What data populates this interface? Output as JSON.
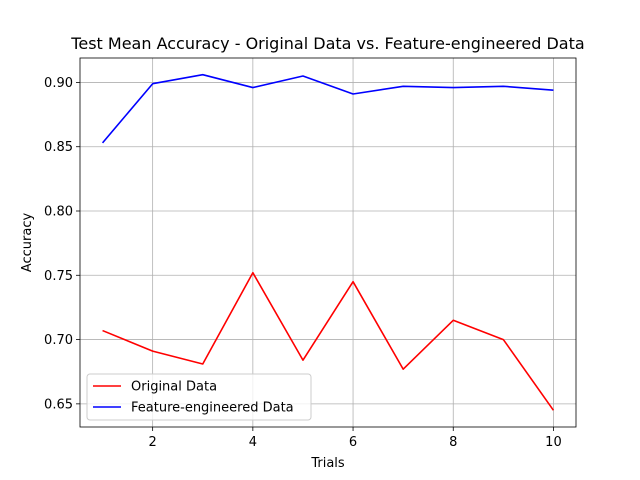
{
  "chart_data": {
    "type": "line",
    "title": "Test Mean Accuracy - Original Data vs. Feature-engineered Data",
    "xlabel": "Trials",
    "ylabel": "Accuracy",
    "x": [
      1,
      2,
      3,
      4,
      5,
      6,
      7,
      8,
      9,
      10
    ],
    "xlim": [
      0.55,
      10.45
    ],
    "ylim": [
      0.632,
      0.919
    ],
    "x_ticks": [
      2,
      4,
      6,
      8,
      10
    ],
    "x_tick_labels": [
      "2",
      "4",
      "6",
      "8",
      "10"
    ],
    "y_ticks": [
      0.65,
      0.7,
      0.75,
      0.8,
      0.85,
      0.9
    ],
    "y_tick_labels": [
      "0.65",
      "0.70",
      "0.75",
      "0.80",
      "0.85",
      "0.90"
    ],
    "grid": true,
    "legend_position": "lower-left",
    "series": [
      {
        "name": "Original Data",
        "color": "#ff0000",
        "values": [
          0.707,
          0.691,
          0.681,
          0.752,
          0.684,
          0.745,
          0.677,
          0.715,
          0.7,
          0.645
        ]
      },
      {
        "name": "Feature-engineered Data",
        "color": "#0000ff",
        "values": [
          0.853,
          0.899,
          0.906,
          0.896,
          0.905,
          0.891,
          0.897,
          0.896,
          0.897,
          0.894
        ]
      }
    ]
  }
}
